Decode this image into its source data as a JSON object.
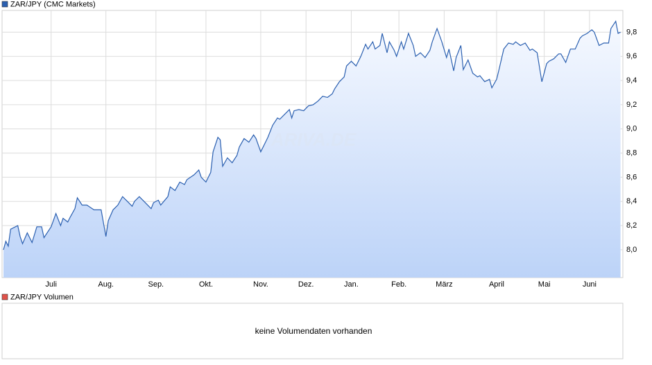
{
  "chart_data": {
    "type": "line",
    "watermark": "ARIVA.DE",
    "x": [
      0,
      1,
      2,
      3,
      6,
      7,
      8,
      10,
      12,
      14,
      16,
      17,
      20,
      22,
      24,
      25,
      27,
      28,
      30,
      31,
      33,
      35,
      38,
      41,
      43,
      44,
      46,
      48,
      50,
      52,
      54,
      55,
      57,
      59,
      62,
      63,
      65,
      66,
      69,
      70,
      72,
      74,
      76,
      77,
      80,
      82,
      83,
      85,
      87,
      88,
      90,
      91,
      92,
      94,
      96,
      98,
      99,
      101,
      103,
      105,
      106,
      108,
      110,
      111,
      113,
      115,
      116,
      118,
      120,
      121,
      122,
      124,
      126,
      128,
      130,
      132,
      134,
      136,
      138,
      139,
      141,
      143,
      144,
      146,
      148,
      150,
      152,
      153,
      155,
      156,
      158,
      159,
      161,
      162,
      164,
      165,
      167,
      168,
      170,
      172,
      173,
      175,
      177,
      179,
      180,
      182,
      184,
      186,
      187,
      189,
      190,
      192,
      193,
      195,
      197,
      199,
      200,
      202,
      204,
      205,
      207,
      208,
      210,
      212,
      214,
      215,
      217,
      219,
      221,
      222,
      224,
      226,
      228,
      229,
      231,
      233,
      234,
      236,
      238,
      240,
      242,
      243,
      245,
      247,
      248,
      250,
      252,
      254,
      255,
      257,
      258,
      259
    ],
    "series": [
      {
        "name": "ZAR/JPY (CMC Markets)",
        "color": "#2a5fb0",
        "values": [
          8.0,
          8.07,
          8.03,
          8.17,
          8.2,
          8.11,
          8.05,
          8.14,
          8.06,
          8.19,
          8.19,
          8.1,
          8.19,
          8.3,
          8.2,
          8.26,
          8.23,
          8.27,
          8.34,
          8.43,
          8.37,
          8.37,
          8.33,
          8.33,
          8.11,
          8.24,
          8.33,
          8.37,
          8.44,
          8.4,
          8.36,
          8.4,
          8.44,
          8.4,
          8.34,
          8.39,
          8.41,
          8.37,
          8.44,
          8.52,
          8.49,
          8.56,
          8.54,
          8.58,
          8.62,
          8.66,
          8.6,
          8.56,
          8.64,
          8.81,
          8.93,
          8.91,
          8.69,
          8.76,
          8.72,
          8.78,
          8.85,
          8.92,
          8.89,
          8.95,
          8.92,
          8.81,
          8.89,
          8.93,
          9.03,
          9.09,
          9.08,
          9.12,
          9.16,
          9.09,
          9.15,
          9.16,
          9.15,
          9.19,
          9.2,
          9.23,
          9.27,
          9.26,
          9.29,
          9.33,
          9.39,
          9.43,
          9.52,
          9.56,
          9.52,
          9.6,
          9.7,
          9.66,
          9.72,
          9.66,
          9.69,
          9.79,
          9.63,
          9.72,
          9.65,
          9.6,
          9.72,
          9.66,
          9.79,
          9.69,
          9.6,
          9.63,
          9.59,
          9.65,
          9.72,
          9.83,
          9.72,
          9.59,
          9.66,
          9.48,
          9.59,
          9.69,
          9.49,
          9.57,
          9.46,
          9.43,
          9.44,
          9.39,
          9.41,
          9.34,
          9.41,
          9.49,
          9.66,
          9.71,
          9.7,
          9.72,
          9.69,
          9.71,
          9.65,
          9.66,
          9.63,
          9.39,
          9.54,
          9.56,
          9.58,
          9.62,
          9.62,
          9.55,
          9.66,
          9.66,
          9.75,
          9.77,
          9.79,
          9.82,
          9.8,
          9.69,
          9.71,
          9.71,
          9.83,
          9.89,
          9.79,
          9.8
        ]
      }
    ],
    "xlim": [
      0,
      260
    ],
    "xticks": [
      {
        "value": 20,
        "label": "Juli"
      },
      {
        "value": 43,
        "label": "Aug."
      },
      {
        "value": 64,
        "label": "Sep."
      },
      {
        "value": 85,
        "label": "Okt."
      },
      {
        "value": 108,
        "label": "Nov."
      },
      {
        "value": 127,
        "label": "Dez."
      },
      {
        "value": 146,
        "label": "Jan."
      },
      {
        "value": 166,
        "label": "Feb."
      },
      {
        "value": 185,
        "label": "März"
      },
      {
        "value": 207,
        "label": "April"
      },
      {
        "value": 227,
        "label": "Mai"
      },
      {
        "value": 246,
        "label": "Juni"
      }
    ],
    "ylim": [
      7.77,
      9.98
    ],
    "yticks": [
      {
        "value": 8.0,
        "label": "8,0"
      },
      {
        "value": 8.2,
        "label": "8,2"
      },
      {
        "value": 8.4,
        "label": "8,4"
      },
      {
        "value": 8.6,
        "label": "8,6"
      },
      {
        "value": 8.8,
        "label": "8,8"
      },
      {
        "value": 9.0,
        "label": "9,0"
      },
      {
        "value": 9.2,
        "label": "9,2"
      },
      {
        "value": 9.4,
        "label": "9,4"
      },
      {
        "value": 9.6,
        "label": "9,6"
      },
      {
        "value": 9.8,
        "label": "9,8"
      }
    ],
    "grid": true
  },
  "volume_panel": {
    "legend": "ZAR/JPY Volumen",
    "color": "#e0524a",
    "message": "keine Volumendaten vorhanden"
  }
}
